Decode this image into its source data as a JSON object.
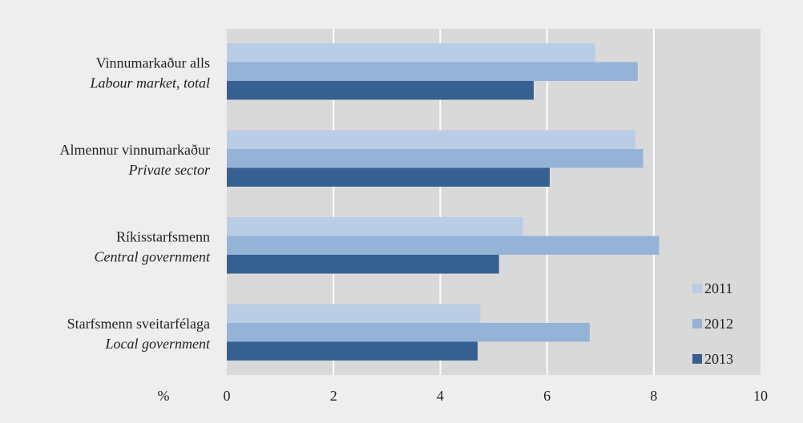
{
  "chart_data": {
    "type": "bar",
    "orientation": "horizontal",
    "unit_label": "%",
    "categories": [
      {
        "label": "Vinnumarkaður alls",
        "sublabel": "Labour market, total"
      },
      {
        "label": "Almennur vinnumarkaður",
        "sublabel": "Private sector"
      },
      {
        "label": "Ríkisstarfsmenn",
        "sublabel": "Central government"
      },
      {
        "label": "Starfsmenn sveitarfélaga",
        "sublabel": "Local government"
      }
    ],
    "series": [
      {
        "name": "2011",
        "color": "#b9cde5",
        "values": [
          6.9,
          7.65,
          5.55,
          4.75
        ]
      },
      {
        "name": "2012",
        "color": "#95b3d7",
        "values": [
          7.7,
          7.8,
          8.1,
          6.8
        ]
      },
      {
        "name": "2013",
        "color": "#376092",
        "values": [
          5.75,
          6.05,
          5.1,
          4.7
        ]
      }
    ],
    "xlim": [
      0,
      10
    ],
    "xticks": [
      0,
      2,
      4,
      6,
      8,
      10
    ],
    "grid": true,
    "plot_background": "#d9d9d9",
    "grid_color": "#ffffff",
    "legend_position": "bottom-right"
  }
}
